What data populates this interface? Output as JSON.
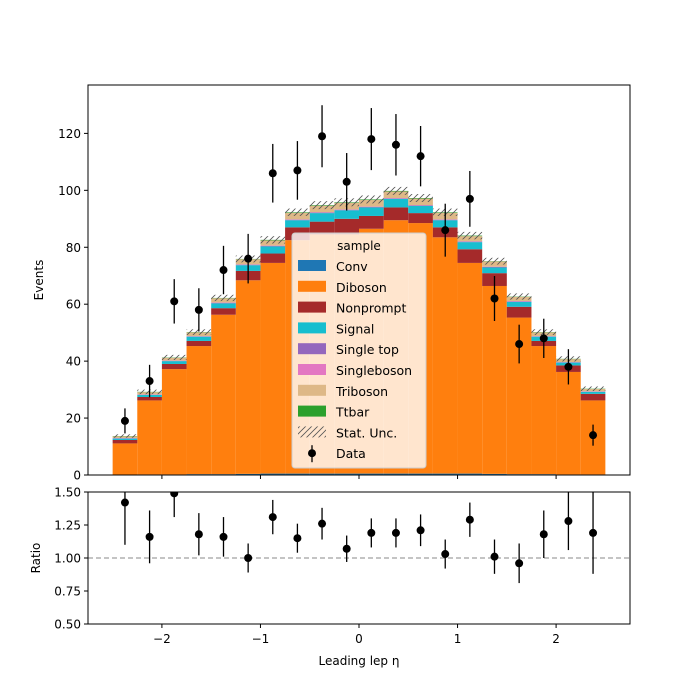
{
  "chart_data": [
    {
      "type": "bar",
      "stacked": true,
      "ylabel": "Events",
      "ylim": [
        0,
        137
      ],
      "yticks": [
        0,
        20,
        40,
        60,
        80,
        100,
        120
      ],
      "x_edges": [
        -2.5,
        -2.25,
        -2.0,
        -1.75,
        -1.5,
        -1.25,
        -1.0,
        -0.75,
        -0.5,
        -0.25,
        0.0,
        0.25,
        0.5,
        0.75,
        1.0,
        1.25,
        1.5,
        1.75,
        2.0,
        2.25,
        2.5
      ],
      "legend": {
        "title": "sample",
        "placement": "center"
      },
      "series": [
        {
          "name": "Conv",
          "color": "#1f77b4",
          "values": [
            0.1,
            0.2,
            0.2,
            0.3,
            0.3,
            0.4,
            0.5,
            0.5,
            0.5,
            0.5,
            0.5,
            0.5,
            0.5,
            0.5,
            0.5,
            0.4,
            0.3,
            0.3,
            0.2,
            0.2
          ]
        },
        {
          "name": "Diboson",
          "color": "#ff7f0e",
          "values": [
            11,
            26,
            37,
            45,
            56,
            68,
            74,
            82,
            84,
            84,
            86,
            89,
            88,
            83,
            74,
            66,
            55,
            45,
            36,
            26
          ]
        },
        {
          "name": "Nonprompt",
          "color": "#a52a2a",
          "values": [
            1.2,
            1.2,
            1.8,
            1.8,
            2.3,
            3.3,
            3.3,
            4.5,
            4.5,
            5.5,
            4.5,
            4.5,
            3.5,
            3.5,
            4.8,
            4.5,
            3.8,
            1.8,
            2.3,
            2.3
          ]
        },
        {
          "name": "Signal",
          "color": "#17becf",
          "values": [
            0.5,
            0.7,
            1.0,
            1.5,
            1.7,
            2.0,
            2.5,
            2.5,
            3.0,
            3.0,
            3.0,
            3.0,
            2.5,
            2.5,
            2.5,
            2.0,
            1.7,
            1.5,
            1.0,
            0.7
          ]
        },
        {
          "name": "Single top",
          "color": "#9467bd",
          "values": [
            0.1,
            0.1,
            0.1,
            0.1,
            0.2,
            0.2,
            0.2,
            0.2,
            0.2,
            0.2,
            0.2,
            0.2,
            0.2,
            0.2,
            0.2,
            0.2,
            0.2,
            0.1,
            0.1,
            0.1
          ]
        },
        {
          "name": "Singleboson",
          "color": "#e377c2",
          "values": [
            0.1,
            0.1,
            0.1,
            0.1,
            0.1,
            0.1,
            0.1,
            0.1,
            0.1,
            0.1,
            0.1,
            0.1,
            0.1,
            0.1,
            0.1,
            0.1,
            0.1,
            0.1,
            0.1,
            0.1
          ]
        },
        {
          "name": "Triboson",
          "color": "#deb887",
          "values": [
            0.6,
            0.8,
            1.0,
            1.3,
            1.5,
            1.8,
            1.8,
            2.3,
            2.3,
            2.3,
            2.3,
            2.3,
            2.3,
            2.3,
            1.8,
            1.8,
            1.5,
            1.3,
            1.0,
            0.8
          ]
        },
        {
          "name": "Ttbar",
          "color": "#2ca02c",
          "values": [
            0.1,
            0.1,
            0.1,
            0.1,
            0.1,
            0.1,
            0.2,
            0.2,
            0.2,
            0.2,
            0.2,
            0.2,
            0.2,
            0.2,
            0.2,
            0.1,
            0.1,
            0.1,
            0.1,
            0.1
          ]
        }
      ],
      "stat_unc": {
        "name": "Stat. Unc.",
        "values": [
          0.6,
          0.8,
          0.9,
          1.0,
          1.1,
          1.2,
          1.3,
          1.3,
          1.4,
          1.4,
          1.4,
          1.4,
          1.4,
          1.3,
          1.3,
          1.2,
          1.1,
          1.0,
          0.9,
          0.8
        ]
      },
      "data": {
        "name": "Data",
        "x": [
          -2.375,
          -2.125,
          -1.875,
          -1.625,
          -1.375,
          -1.125,
          -0.875,
          -0.625,
          -0.375,
          -0.125,
          0.125,
          0.375,
          0.625,
          0.875,
          1.125,
          1.375,
          1.625,
          1.875,
          2.125,
          2.375
        ],
        "y": [
          19,
          33,
          61,
          58,
          72,
          76,
          106,
          107,
          119,
          103,
          118,
          116,
          112,
          86,
          97,
          62,
          46,
          48,
          38,
          14
        ],
        "yerr": [
          4.4,
          5.7,
          7.8,
          7.6,
          8.5,
          8.7,
          10.3,
          10.3,
          10.9,
          10.1,
          10.9,
          10.8,
          10.6,
          9.3,
          9.8,
          7.9,
          6.8,
          6.9,
          6.2,
          3.7
        ]
      }
    },
    {
      "type": "scatter",
      "xlabel": "Leading lep η",
      "ylabel": "Ratio",
      "xlim": [
        -2.75,
        2.75
      ],
      "ylim": [
        0.5,
        1.5
      ],
      "xticks": [
        -2,
        -1,
        0,
        1,
        2
      ],
      "yticks": [
        "0.50",
        "0.75",
        "1.00",
        "1.25",
        "1.50"
      ],
      "reference_line": 1.0,
      "x": [
        -2.375,
        -2.125,
        -1.875,
        -1.625,
        -1.375,
        -1.125,
        -0.875,
        -0.625,
        -0.375,
        -0.125,
        0.125,
        0.375,
        0.625,
        0.875,
        1.125,
        1.375,
        1.625,
        1.875,
        2.125,
        2.375
      ],
      "y": [
        1.42,
        1.16,
        1.49,
        1.18,
        1.16,
        1.0,
        1.31,
        1.15,
        1.26,
        1.07,
        1.19,
        1.19,
        1.21,
        1.03,
        1.29,
        1.01,
        0.96,
        1.18,
        1.28,
        1.19
      ],
      "yerr": [
        0.32,
        0.2,
        0.18,
        0.16,
        0.15,
        0.11,
        0.13,
        0.11,
        0.12,
        0.1,
        0.11,
        0.11,
        0.12,
        0.11,
        0.13,
        0.13,
        0.15,
        0.18,
        0.22,
        0.31
      ]
    }
  ]
}
